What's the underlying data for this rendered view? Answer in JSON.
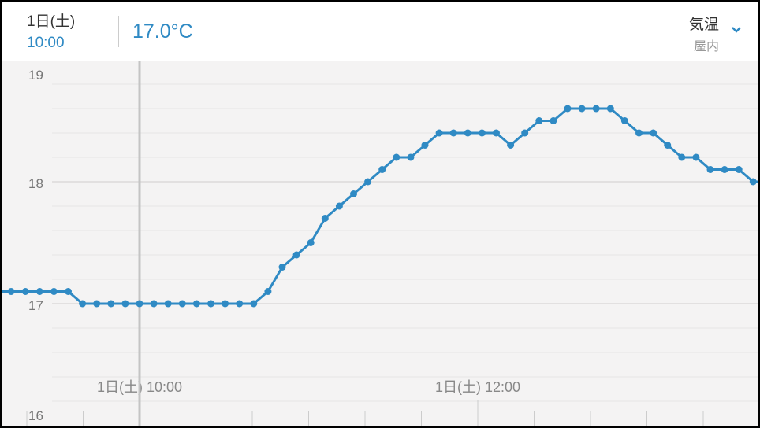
{
  "header": {
    "date": "1日(土)",
    "time": "10:00",
    "value": "17.0°C",
    "metric": "気温",
    "location": "屋内",
    "dropdown_icon": "chevron-down-icon"
  },
  "colors": {
    "accent": "#2f8ac4",
    "background": "#f4f3f3"
  },
  "chart_data": {
    "type": "line",
    "ylim": [
      16,
      19
    ],
    "yticks": [
      "16",
      "17",
      "18",
      "19"
    ],
    "xtick_labels": [
      {
        "time": "10:00",
        "label": "1日(土) 10:00"
      },
      {
        "time": "12:00",
        "label": "1日(土) 12:00"
      }
    ],
    "cursor_time": "10:00",
    "grid": true,
    "x": [
      "09:15",
      "09:20",
      "09:25",
      "09:30",
      "09:35",
      "09:40",
      "09:45",
      "09:50",
      "09:55",
      "10:00",
      "10:05",
      "10:10",
      "10:15",
      "10:20",
      "10:25",
      "10:30",
      "10:35",
      "10:40",
      "10:45",
      "10:50",
      "10:55",
      "11:00",
      "11:05",
      "11:10",
      "11:15",
      "11:20",
      "11:25",
      "11:30",
      "11:35",
      "11:40",
      "11:45",
      "11:50",
      "11:55",
      "12:00",
      "12:05",
      "12:10",
      "12:15",
      "12:20",
      "12:25",
      "12:30",
      "12:35",
      "12:40",
      "12:45",
      "12:50",
      "12:55",
      "13:00",
      "13:05",
      "13:10",
      "13:15",
      "13:20",
      "13:25",
      "13:30",
      "13:35"
    ],
    "values": [
      17.1,
      17.1,
      17.1,
      17.1,
      17.1,
      17.0,
      17.0,
      17.0,
      17.0,
      17.0,
      17.0,
      17.0,
      17.0,
      17.0,
      17.0,
      17.0,
      17.0,
      17.0,
      17.1,
      17.3,
      17.4,
      17.5,
      17.7,
      17.8,
      17.9,
      18.0,
      18.1,
      18.2,
      18.2,
      18.3,
      18.4,
      18.4,
      18.4,
      18.4,
      18.4,
      18.3,
      18.4,
      18.5,
      18.5,
      18.6,
      18.6,
      18.6,
      18.6,
      18.5,
      18.4,
      18.4,
      18.3,
      18.2,
      18.2,
      18.1,
      18.1,
      18.1,
      18.0
    ]
  }
}
